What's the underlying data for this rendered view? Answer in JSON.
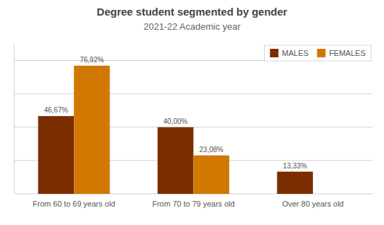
{
  "chart_data": {
    "type": "bar",
    "title": "Degree student segmented by gender",
    "subtitle": "2021-22 Academic year",
    "categories": [
      "From 60 to 69 years old",
      "From 70 to 79 years old",
      "Over 80 years old"
    ],
    "series": [
      {
        "name": "MALES",
        "color": "#7B2D00",
        "values": [
          46.67,
          40.0,
          13.33
        ],
        "value_labels": [
          "46,67%",
          "40,00%",
          "13,33%"
        ]
      },
      {
        "name": "FEMALES",
        "color": "#D07800",
        "values": [
          76.92,
          23.08,
          0
        ],
        "value_labels": [
          "76,92%",
          "23,08%",
          null
        ]
      }
    ],
    "ylim": [
      0,
      90
    ],
    "yticks": [
      0,
      20,
      40,
      60,
      80
    ],
    "grid": true,
    "tick_labels": "x",
    "legend": "upper right",
    "data_labels": true
  }
}
